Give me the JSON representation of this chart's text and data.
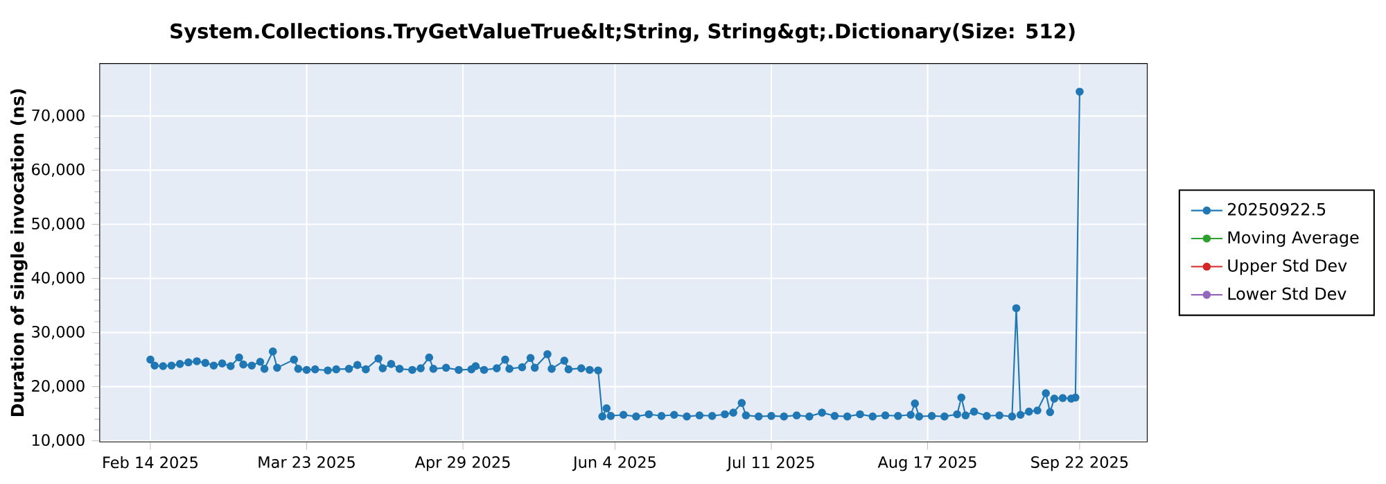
{
  "chart_data": {
    "type": "line",
    "title": "System.Collections.TryGetValueTrue&lt;String, String&gt;.Dictionary(Size: 512)",
    "ylabel": "Duration of single invocation (ns)",
    "x": [
      "2025-02-14",
      "2025-02-15",
      "2025-02-17",
      "2025-02-19",
      "2025-02-21",
      "2025-02-23",
      "2025-02-25",
      "2025-02-27",
      "2025-03-01",
      "2025-03-03",
      "2025-03-05",
      "2025-03-07",
      "2025-03-08",
      "2025-03-10",
      "2025-03-12",
      "2025-03-13",
      "2025-03-15",
      "2025-03-16",
      "2025-03-20",
      "2025-03-21",
      "2025-03-23",
      "2025-03-25",
      "2025-03-28",
      "2025-03-30",
      "2025-04-02",
      "2025-04-04",
      "2025-04-06",
      "2025-04-09",
      "2025-04-10",
      "2025-04-12",
      "2025-04-14",
      "2025-04-17",
      "2025-04-19",
      "2025-04-21",
      "2025-04-22",
      "2025-04-25",
      "2025-04-28",
      "2025-05-01",
      "2025-05-02",
      "2025-05-04",
      "2025-05-07",
      "2025-05-09",
      "2025-05-10",
      "2025-05-13",
      "2025-05-15",
      "2025-05-16",
      "2025-05-19",
      "2025-05-20",
      "2025-05-23",
      "2025-05-24",
      "2025-05-27",
      "2025-05-29",
      "2025-05-31",
      "2025-06-01",
      "2025-06-02",
      "2025-06-03",
      "2025-06-06",
      "2025-06-09",
      "2025-06-12",
      "2025-06-15",
      "2025-06-18",
      "2025-06-21",
      "2025-06-24",
      "2025-06-27",
      "2025-06-30",
      "2025-07-02",
      "2025-07-04",
      "2025-07-05",
      "2025-07-08",
      "2025-07-11",
      "2025-07-14",
      "2025-07-17",
      "2025-07-20",
      "2025-07-23",
      "2025-07-26",
      "2025-07-29",
      "2025-08-01",
      "2025-08-04",
      "2025-08-07",
      "2025-08-10",
      "2025-08-13",
      "2025-08-14",
      "2025-08-15",
      "2025-08-18",
      "2025-08-21",
      "2025-08-24",
      "2025-08-25",
      "2025-08-26",
      "2025-08-28",
      "2025-08-31",
      "2025-09-03",
      "2025-09-06",
      "2025-09-07",
      "2025-09-08",
      "2025-09-10",
      "2025-09-12",
      "2025-09-14",
      "2025-09-15",
      "2025-09-16",
      "2025-09-18",
      "2025-09-20",
      "2025-09-21",
      "2025-09-22"
    ],
    "series": [
      {
        "name": "20250922.5",
        "color": "#1f77b4",
        "values": [
          25000,
          23900,
          23800,
          23900,
          24200,
          24500,
          24700,
          24400,
          23900,
          24300,
          23800,
          25400,
          24100,
          23900,
          24600,
          23300,
          26500,
          23500,
          25000,
          23300,
          23100,
          23200,
          23000,
          23200,
          23300,
          24000,
          23200,
          25200,
          23400,
          24200,
          23300,
          23100,
          23400,
          25400,
          23300,
          23500,
          23100,
          23200,
          23800,
          23100,
          23400,
          25000,
          23300,
          23600,
          25300,
          23500,
          26000,
          23300,
          24800,
          23200,
          23400,
          23100,
          23000,
          14500,
          16000,
          14600,
          14800,
          14500,
          14900,
          14600,
          14800,
          14500,
          14700,
          14600,
          14900,
          15200,
          17000,
          14700,
          14500,
          14600,
          14500,
          14700,
          14500,
          15200,
          14600,
          14500,
          14900,
          14500,
          14700,
          14600,
          14800,
          16900,
          14500,
          14600,
          14500,
          14900,
          18000,
          14700,
          15400,
          14600,
          14700,
          14500,
          34500,
          14800,
          15400,
          15600,
          18800,
          15300,
          17800,
          17900,
          17800,
          18000,
          74500
        ]
      },
      {
        "name": "Moving Average",
        "color": "#2ca02c",
        "values": [
          null,
          null,
          null,
          null,
          null,
          null,
          null,
          null,
          null,
          null,
          null,
          null,
          null,
          null,
          null,
          null,
          null,
          null,
          null,
          null,
          null,
          null,
          null,
          null,
          null,
          null,
          null,
          null,
          null,
          null,
          null,
          null,
          null,
          null,
          null,
          null,
          null,
          null,
          null,
          null,
          null,
          null,
          null,
          null,
          null,
          null,
          null,
          null,
          null,
          null,
          null,
          null,
          null,
          null,
          null,
          null,
          null,
          null,
          null,
          null,
          null,
          null,
          null,
          null,
          null,
          null,
          null,
          null,
          null,
          null,
          null,
          null,
          null,
          null,
          null,
          null,
          null,
          null,
          null,
          null,
          null,
          null,
          null,
          null,
          null,
          null,
          null,
          null,
          null,
          null,
          null,
          null,
          null,
          null,
          null,
          null,
          null,
          null,
          null,
          null,
          null,
          null,
          null
        ]
      },
      {
        "name": "Upper Std Dev",
        "color": "#d62728",
        "values": [
          null,
          null,
          null,
          null,
          null,
          null,
          null,
          null,
          null,
          null,
          null,
          null,
          null,
          null,
          null,
          null,
          null,
          null,
          null,
          null,
          null,
          null,
          null,
          null,
          null,
          null,
          null,
          null,
          null,
          null,
          null,
          null,
          null,
          null,
          null,
          null,
          null,
          null,
          null,
          null,
          null,
          null,
          null,
          null,
          null,
          null,
          null,
          null,
          null,
          null,
          null,
          null,
          null,
          null,
          null,
          null,
          null,
          null,
          null,
          null,
          null,
          null,
          null,
          null,
          null,
          null,
          null,
          null,
          null,
          null,
          null,
          null,
          null,
          null,
          null,
          null,
          null,
          null,
          null,
          null,
          null,
          null,
          null,
          null,
          null,
          null,
          null,
          null,
          null,
          null,
          null,
          null,
          null,
          null,
          null,
          null,
          null,
          null,
          null,
          null,
          null,
          null,
          null
        ]
      },
      {
        "name": "Lower Std Dev",
        "color": "#9467bd",
        "values": [
          null,
          null,
          null,
          null,
          null,
          null,
          null,
          null,
          null,
          null,
          null,
          null,
          null,
          null,
          null,
          null,
          null,
          null,
          null,
          null,
          null,
          null,
          null,
          null,
          null,
          null,
          null,
          null,
          null,
          null,
          null,
          null,
          null,
          null,
          null,
          null,
          null,
          null,
          null,
          null,
          null,
          null,
          null,
          null,
          null,
          null,
          null,
          null,
          null,
          null,
          null,
          null,
          null,
          null,
          null,
          null,
          null,
          null,
          null,
          null,
          null,
          null,
          null,
          null,
          null,
          null,
          null,
          null,
          null,
          null,
          null,
          null,
          null,
          null,
          null,
          null,
          null,
          null,
          null,
          null,
          null,
          null,
          null,
          null,
          null,
          null,
          null,
          null,
          null,
          null,
          null,
          null,
          null,
          null,
          null,
          null,
          null,
          null,
          null,
          null,
          null,
          null,
          null
        ]
      }
    ],
    "xlim": [
      "2025-02-02",
      "2025-10-08"
    ],
    "xticks": [
      {
        "value": "2025-02-14",
        "label": "Feb 14 2025"
      },
      {
        "value": "2025-03-23",
        "label": "Mar 23 2025"
      },
      {
        "value": "2025-04-29",
        "label": "Apr 29 2025"
      },
      {
        "value": "2025-06-04",
        "label": "Jun 4 2025"
      },
      {
        "value": "2025-07-11",
        "label": "Jul 11 2025"
      },
      {
        "value": "2025-08-17",
        "label": "Aug 17 2025"
      },
      {
        "value": "2025-09-22",
        "label": "Sep 22 2025"
      }
    ],
    "ylim": [
      9800,
      79700
    ],
    "yticks": [
      {
        "value": 10000,
        "label": "10,000"
      },
      {
        "value": 20000,
        "label": "20,000"
      },
      {
        "value": 30000,
        "label": "30,000"
      },
      {
        "value": 40000,
        "label": "40,000"
      },
      {
        "value": 50000,
        "label": "50,000"
      },
      {
        "value": 60000,
        "label": "60,000"
      },
      {
        "value": 70000,
        "label": "70,000"
      }
    ],
    "grid": true,
    "legend": "right",
    "marker": "circle",
    "line_style": "solid"
  }
}
